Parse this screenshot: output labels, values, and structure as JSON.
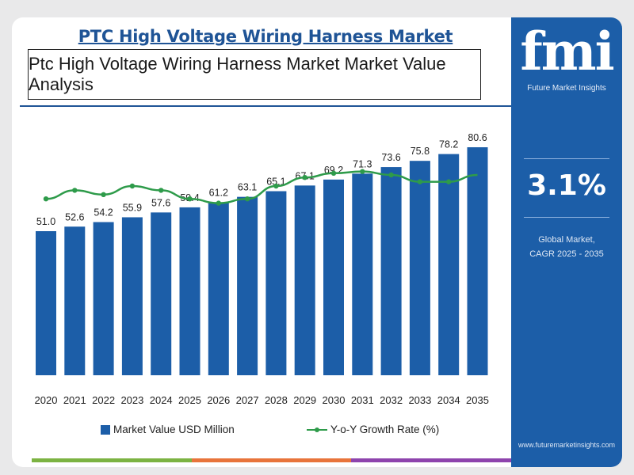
{
  "header": {
    "title": "PTC High Voltage Wiring Harness Market",
    "subtitle": "Ptc High Voltage Wiring Harness Market Market Value Analysis"
  },
  "sidebar": {
    "logo_text": "fmi",
    "logo_caption": "Future Market Insights",
    "cagr_value": "3.1%",
    "cagr_label_line1": "Global Market,",
    "cagr_label_line2": "CAGR 2025 - 2035",
    "website": "www.futuremarketinsights.com"
  },
  "colors": {
    "bar": "#1c5ea8",
    "line": "#2e9b4a",
    "title": "#1f5496",
    "bottom_bar": [
      "#7cb342",
      "#e8743b",
      "#8e44ad"
    ]
  },
  "chart_data": {
    "type": "bar",
    "categories": [
      "2020",
      "2021",
      "2022",
      "2023",
      "2024",
      "2025",
      "2026",
      "2027",
      "2028",
      "2029",
      "2030",
      "2031",
      "2032",
      "2033",
      "2034",
      "2035"
    ],
    "series": [
      {
        "name": "Market Value USD Million",
        "type": "bar",
        "values": [
          51.0,
          52.6,
          54.2,
          55.9,
          57.6,
          59.4,
          61.2,
          63.1,
          65.1,
          67.1,
          69.2,
          71.3,
          73.6,
          75.8,
          78.2,
          80.6
        ],
        "labels": [
          "51.0",
          "52.6",
          "54.2",
          "55.9",
          "57.6",
          "59.4",
          "61.2",
          "63.1",
          "65.1",
          "67.1",
          "69.2",
          "71.3",
          "73.6",
          "75.8",
          "78.2",
          "80.6"
        ]
      },
      {
        "name": "Y-o-Y Growth Rate (%)",
        "type": "line",
        "values": [
          3.0,
          3.1,
          3.05,
          3.15,
          3.1,
          3.0,
          2.95,
          3.0,
          3.15,
          3.25,
          3.3,
          3.32,
          3.28,
          3.2,
          3.2,
          3.28
        ]
      }
    ],
    "legend_position": "bottom",
    "grid": false
  }
}
